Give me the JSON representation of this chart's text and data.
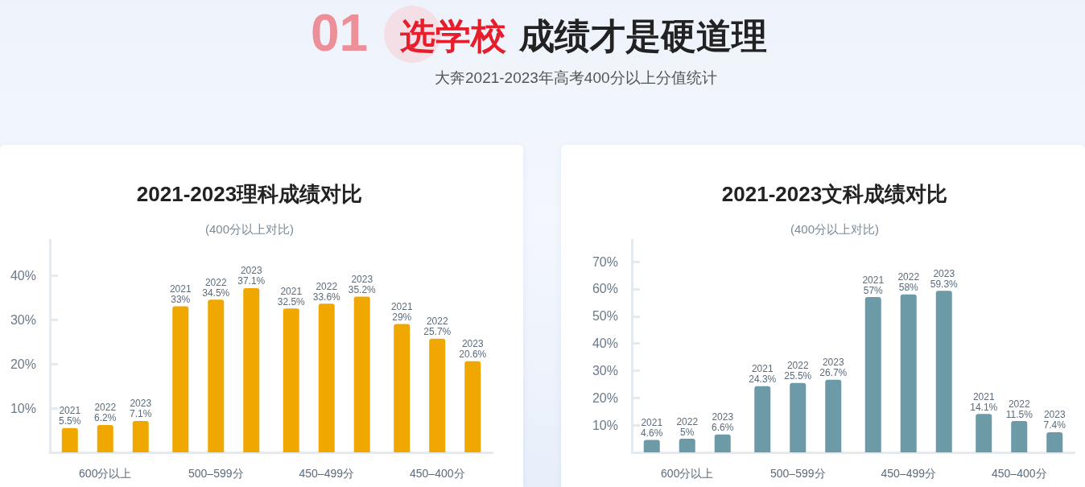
{
  "chart_data": [
    {
      "type": "bar",
      "title": "2021-2023理科成绩对比",
      "subtitle": "(400分以上对比)",
      "annotations": [
        "01",
        "选学校",
        "成绩才是硬道理",
        "大奔2021-2023年高考400分以上分值统计"
      ],
      "categories": [
        "600分以上",
        "500–599分",
        "450–499分",
        "450–400分"
      ],
      "series": [
        {
          "name": "2021",
          "color": "#f0a800",
          "values": [
            5.5,
            33,
            32.5,
            29
          ],
          "value_labels": [
            "5.5%",
            "33%",
            "32.5%",
            "29%"
          ]
        },
        {
          "name": "2022",
          "color": "#f0a800",
          "values": [
            6.2,
            34.5,
            33.6,
            25.7
          ],
          "value_labels": [
            "6.2%",
            "34.5%",
            "33.6%",
            "25.7%"
          ]
        },
        {
          "name": "2023",
          "color": "#f0a800",
          "values": [
            7.1,
            37.1,
            35.2,
            20.6
          ],
          "value_labels": [
            "7.1%",
            "37.1%",
            "35.2%",
            "20.6%"
          ]
        }
      ],
      "ylim": [
        0,
        48
      ],
      "yticks": [
        {
          "value": 10,
          "label": "10%"
        },
        {
          "value": 20,
          "label": "20%"
        },
        {
          "value": 30,
          "label": "30%"
        },
        {
          "value": 40,
          "label": "40%"
        }
      ]
    },
    {
      "type": "bar",
      "title": "2021-2023文科成绩对比",
      "subtitle": "(400分以上对比)",
      "categories": [
        "600分以上",
        "500–599分",
        "450–499分",
        "450–400分"
      ],
      "series": [
        {
          "name": "2021",
          "color": "#6c9aa6",
          "values": [
            4.6,
            24.3,
            57,
            14.1
          ],
          "value_labels": [
            "4.6%",
            "24.3%",
            "57%",
            "14.1%"
          ]
        },
        {
          "name": "2022",
          "color": "#6c9aa6",
          "values": [
            5,
            25.5,
            58,
            11.5
          ],
          "value_labels": [
            "5%",
            "25.5%",
            "58%",
            "11.5%"
          ]
        },
        {
          "name": "2023",
          "color": "#6c9aa6",
          "values": [
            6.6,
            26.7,
            59.3,
            7.4
          ],
          "value_labels": [
            "6.6%",
            "26.7%",
            "59.3%",
            "7.4%"
          ]
        }
      ],
      "ylim": [
        0,
        78
      ],
      "yticks": [
        {
          "value": 10,
          "label": "10%"
        },
        {
          "value": 20,
          "label": "20%"
        },
        {
          "value": 30,
          "label": "30%"
        },
        {
          "value": 40,
          "label": "40%"
        },
        {
          "value": 50,
          "label": "50%"
        },
        {
          "value": 60,
          "label": "60%"
        },
        {
          "value": 70,
          "label": "70%"
        }
      ]
    }
  ]
}
